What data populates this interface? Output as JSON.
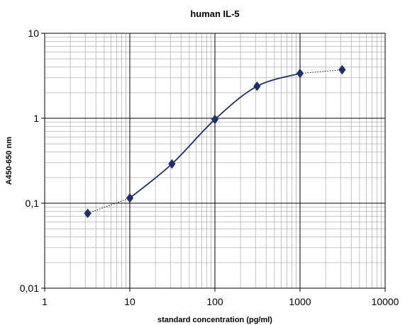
{
  "chart_data": {
    "type": "scatter",
    "title": "human IL-5",
    "xlabel": "standard concentration (pg/ml)",
    "ylabel": "A450-650 nm",
    "xscale": "log",
    "yscale": "log",
    "xlim": [
      1,
      10000
    ],
    "ylim": [
      0.01,
      10
    ],
    "grid": true,
    "x_ticks": [
      1,
      10,
      100,
      1000,
      10000
    ],
    "x_tick_labels": [
      "1",
      "10",
      "100",
      "1000",
      "10000"
    ],
    "y_ticks": [
      0.01,
      0.1,
      1,
      10
    ],
    "y_tick_labels": [
      "0,01",
      "0,1",
      "1",
      "10"
    ],
    "series": [
      {
        "x": [
          3.2,
          10,
          31.25,
          100,
          312.5,
          1000,
          3125
        ],
        "y": [
          0.076,
          0.115,
          0.29,
          0.97,
          2.38,
          3.37,
          3.72
        ]
      }
    ],
    "colors": {
      "marker": "#1e2f6b",
      "line": "#1e2f6b",
      "grid_major": "#000000",
      "grid_minor": "#b4b4b4"
    }
  }
}
